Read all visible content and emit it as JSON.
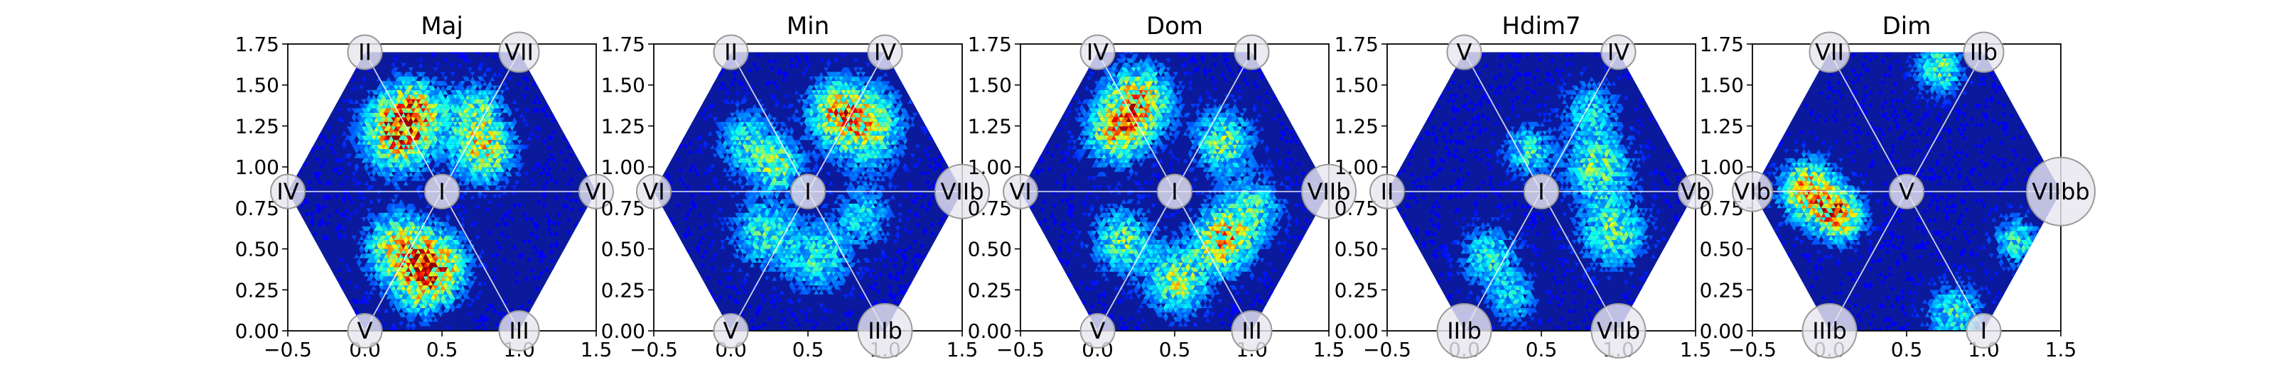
{
  "figure": {
    "background": "#ffffff"
  },
  "chart_data": [
    {
      "type": "heatmap",
      "title": "Maj",
      "xlim": [
        -0.5,
        1.5
      ],
      "ylim": [
        0,
        1.75
      ],
      "x_ticks": [
        "−0.5",
        "0.0",
        "0.5",
        "1.0",
        "1.5"
      ],
      "y_ticks": [
        "0.00",
        "0.25",
        "0.50",
        "0.75",
        "1.00",
        "1.25",
        "1.50",
        "1.75"
      ],
      "grid": false,
      "center_label": "I",
      "node_labels": [
        {
          "label": "VII",
          "x": 1.0,
          "y": 1.7
        },
        {
          "label": "II",
          "x": 0.0,
          "y": 1.7
        },
        {
          "label": "IV",
          "x": -0.5,
          "y": 0.85
        },
        {
          "label": "V",
          "x": 0.0,
          "y": 0.0
        },
        {
          "label": "III",
          "x": 1.0,
          "y": 0.0
        },
        {
          "label": "VI",
          "x": 1.5,
          "y": 0.85
        }
      ],
      "hotspots": [
        {
          "x": 0.2,
          "y": 1.2,
          "w": 1.0,
          "s": 0.15
        },
        {
          "x": 0.3,
          "y": 1.35,
          "w": 0.7,
          "s": 0.12
        },
        {
          "x": 0.75,
          "y": 1.1,
          "w": 0.8,
          "s": 0.13
        },
        {
          "x": 0.7,
          "y": 1.35,
          "w": 0.5,
          "s": 0.12
        },
        {
          "x": 0.2,
          "y": 0.5,
          "w": 0.8,
          "s": 0.14
        },
        {
          "x": 0.45,
          "y": 0.4,
          "w": 0.9,
          "s": 0.13
        },
        {
          "x": 0.35,
          "y": 0.25,
          "w": 0.5,
          "s": 0.12
        }
      ]
    },
    {
      "type": "heatmap",
      "title": "Min",
      "xlim": [
        -0.5,
        1.5
      ],
      "ylim": [
        0,
        1.75
      ],
      "x_ticks": [
        "−0.5",
        "0.0",
        "0.5",
        "1.0",
        "1.5"
      ],
      "y_ticks": [
        "0.00",
        "0.25",
        "0.50",
        "0.75",
        "1.00",
        "1.25",
        "1.50",
        "1.75"
      ],
      "grid": false,
      "center_label": "I",
      "node_labels": [
        {
          "label": "IV",
          "x": 1.0,
          "y": 1.7
        },
        {
          "label": "II",
          "x": 0.0,
          "y": 1.7
        },
        {
          "label": "VI",
          "x": -0.5,
          "y": 0.85
        },
        {
          "label": "V",
          "x": 0.0,
          "y": 0.0
        },
        {
          "label": "IIIb",
          "x": 1.0,
          "y": 0.0
        },
        {
          "label": "VIIb",
          "x": 1.5,
          "y": 0.85
        }
      ],
      "hotspots": [
        {
          "x": 0.85,
          "y": 1.25,
          "w": 0.8,
          "s": 0.16
        },
        {
          "x": 0.65,
          "y": 1.35,
          "w": 0.6,
          "s": 0.12
        },
        {
          "x": 0.1,
          "y": 1.15,
          "w": 0.5,
          "s": 0.13
        },
        {
          "x": 0.3,
          "y": 1.0,
          "w": 0.6,
          "s": 0.1
        },
        {
          "x": 0.2,
          "y": 0.6,
          "w": 0.5,
          "s": 0.14
        },
        {
          "x": 0.55,
          "y": 0.45,
          "w": 0.5,
          "s": 0.14
        },
        {
          "x": 0.85,
          "y": 0.7,
          "w": 0.4,
          "s": 0.12
        }
      ]
    },
    {
      "type": "heatmap",
      "title": "Dom",
      "xlim": [
        -0.5,
        1.5
      ],
      "ylim": [
        0,
        1.75
      ],
      "x_ticks": [
        "−0.5",
        "0.0",
        "0.5",
        "1.0",
        "1.5"
      ],
      "y_ticks": [
        "0.00",
        "0.25",
        "0.50",
        "0.75",
        "1.00",
        "1.25",
        "1.50",
        "1.75"
      ],
      "grid": false,
      "center_label": "I",
      "node_labels": [
        {
          "label": "II",
          "x": 1.0,
          "y": 1.7
        },
        {
          "label": "IV",
          "x": 0.0,
          "y": 1.7
        },
        {
          "label": "VI",
          "x": -0.5,
          "y": 0.85
        },
        {
          "label": "V",
          "x": 0.0,
          "y": 0.0
        },
        {
          "label": "III",
          "x": 1.0,
          "y": 0.0
        },
        {
          "label": "VIIb",
          "x": 1.5,
          "y": 0.85
        }
      ],
      "hotspots": [
        {
          "x": 0.25,
          "y": 1.4,
          "w": 0.9,
          "s": 0.14
        },
        {
          "x": 0.1,
          "y": 1.2,
          "w": 0.7,
          "s": 0.13
        },
        {
          "x": 0.8,
          "y": 1.15,
          "w": 0.6,
          "s": 0.13
        },
        {
          "x": 0.15,
          "y": 0.55,
          "w": 0.6,
          "s": 0.13
        },
        {
          "x": 0.8,
          "y": 0.55,
          "w": 0.9,
          "s": 0.13
        },
        {
          "x": 0.5,
          "y": 0.3,
          "w": 0.7,
          "s": 0.13
        },
        {
          "x": 1.0,
          "y": 0.75,
          "w": 0.5,
          "s": 0.12
        }
      ]
    },
    {
      "type": "heatmap",
      "title": "Hdim7",
      "xlim": [
        -0.5,
        1.5
      ],
      "ylim": [
        0,
        1.75
      ],
      "x_ticks": [
        "−0.5",
        "0.0",
        "0.5",
        "1.0",
        "1.5"
      ],
      "y_ticks": [
        "0.00",
        "0.25",
        "0.50",
        "0.75",
        "1.00",
        "1.25",
        "1.50",
        "1.75"
      ],
      "grid": false,
      "center_label": "I",
      "node_labels": [
        {
          "label": "IV",
          "x": 1.0,
          "y": 1.7
        },
        {
          "label": "V",
          "x": 0.0,
          "y": 1.7
        },
        {
          "label": "II",
          "x": -0.5,
          "y": 0.85
        },
        {
          "label": "IIIb",
          "x": 0.0,
          "y": 0.0
        },
        {
          "label": "VIIb",
          "x": 1.0,
          "y": 0.0
        },
        {
          "label": "Vb",
          "x": 1.5,
          "y": 0.85
        }
      ],
      "hotspots": [
        {
          "x": 0.4,
          "y": 1.1,
          "w": 0.5,
          "s": 0.1
        },
        {
          "x": 0.85,
          "y": 1.0,
          "w": 0.6,
          "s": 0.14
        },
        {
          "x": 0.95,
          "y": 0.6,
          "w": 0.6,
          "s": 0.14
        },
        {
          "x": 0.8,
          "y": 1.35,
          "w": 0.4,
          "s": 0.12
        },
        {
          "x": 0.15,
          "y": 0.45,
          "w": 0.5,
          "s": 0.12
        },
        {
          "x": 0.3,
          "y": 0.2,
          "w": 0.4,
          "s": 0.1
        }
      ]
    },
    {
      "type": "heatmap",
      "title": "Dim",
      "xlim": [
        -0.5,
        1.5
      ],
      "ylim": [
        0,
        1.75
      ],
      "x_ticks": [
        "−0.5",
        "0.0",
        "0.5",
        "1.0",
        "1.5"
      ],
      "y_ticks": [
        "0.00",
        "0.25",
        "0.50",
        "0.75",
        "1.00",
        "1.25",
        "1.50",
        "1.75"
      ],
      "grid": false,
      "center_label": "V",
      "node_labels": [
        {
          "label": "IIb",
          "x": 1.0,
          "y": 1.7
        },
        {
          "label": "VII",
          "x": 0.0,
          "y": 1.7
        },
        {
          "label": "VIb",
          "x": -0.5,
          "y": 0.85
        },
        {
          "label": "IIIb",
          "x": 0.0,
          "y": 0.0
        },
        {
          "label": "I",
          "x": 1.0,
          "y": 0.0
        },
        {
          "label": "VIIbb",
          "x": 1.5,
          "y": 0.85
        }
      ],
      "hotspots": [
        {
          "x": -0.15,
          "y": 0.85,
          "w": 1.0,
          "s": 0.12
        },
        {
          "x": 0.05,
          "y": 0.7,
          "w": 1.0,
          "s": 0.1
        },
        {
          "x": 0.7,
          "y": 1.6,
          "w": 0.6,
          "s": 0.1
        },
        {
          "x": 1.2,
          "y": 0.55,
          "w": 0.5,
          "s": 0.1
        },
        {
          "x": 0.8,
          "y": 0.1,
          "w": 0.5,
          "s": 0.12
        }
      ]
    }
  ]
}
